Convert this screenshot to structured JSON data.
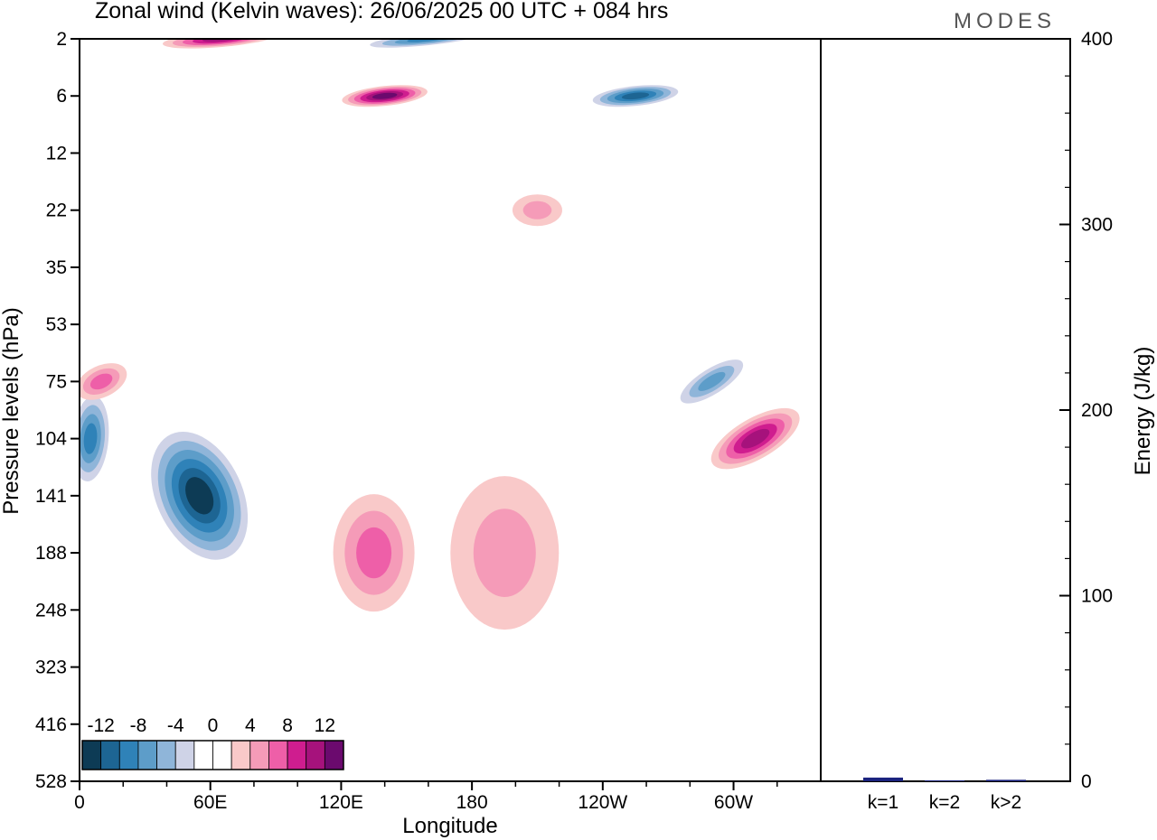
{
  "header": {
    "title": "Zonal wind (Kelvin waves):  26/06/2025  00 UTC  + 084 hrs",
    "logo": "MODES"
  },
  "chart_data": [
    {
      "type": "heatmap",
      "title": "Zonal wind (Kelvin waves):  26/06/2025  00 UTC  + 084 hrs",
      "xlabel": "Longitude",
      "ylabel": "Pressure levels (hPa)",
      "x_ticks": [
        "0",
        "60E",
        "120E",
        "180",
        "120W",
        "60W"
      ],
      "x_range": [
        0,
        340
      ],
      "y_ticks": [
        "2",
        "6",
        "12",
        "22",
        "35",
        "53",
        "75",
        "104",
        "141",
        "188",
        "248",
        "323",
        "416",
        "528"
      ],
      "colorbar": {
        "labels": [
          "-12",
          "-8",
          "-4",
          "0",
          "4",
          "8",
          "12"
        ],
        "levels": [
          -14,
          -12,
          -10,
          -8,
          -6,
          -4,
          -2,
          0,
          2,
          4,
          6,
          8,
          10,
          12,
          14
        ],
        "colors": [
          "#0d3b55",
          "#1d6593",
          "#2f82b8",
          "#5d9dc9",
          "#8fb5d9",
          "#cfd3e7",
          "#ffffff",
          "#ffffff",
          "#f9c9c9",
          "#f59bb8",
          "#ee5fa8",
          "#cf1d8f",
          "#a6127c",
          "#6b0a6e"
        ]
      },
      "features": [
        {
          "sign": "negative",
          "lon": 55,
          "level": "141",
          "peak": -12
        },
        {
          "sign": "negative",
          "lon": 5,
          "level": "104",
          "peak": -8
        },
        {
          "sign": "negative",
          "lon": 255,
          "level": "6",
          "peak": -10
        },
        {
          "sign": "negative",
          "lon": 160,
          "level": "2",
          "peak": -8
        },
        {
          "sign": "negative",
          "lon": 290,
          "level": "75",
          "peak": -6
        },
        {
          "sign": "positive",
          "lon": 140,
          "level": "6",
          "peak": 12
        },
        {
          "sign": "positive",
          "lon": 65,
          "level": "2",
          "peak": 10
        },
        {
          "sign": "positive",
          "lon": 135,
          "level": "188",
          "peak": 6
        },
        {
          "sign": "positive",
          "lon": 195,
          "level": "188",
          "peak": 4
        },
        {
          "sign": "positive",
          "lon": 310,
          "level": "104",
          "peak": 10
        },
        {
          "sign": "positive",
          "lon": 210,
          "level": "22",
          "peak": 4
        },
        {
          "sign": "positive",
          "lon": 10,
          "level": "75",
          "peak": 6
        }
      ]
    },
    {
      "type": "bar",
      "categories": [
        "k=1",
        "k=2",
        "k>2"
      ],
      "values": [
        2,
        0.5,
        0.8
      ],
      "ylabel": "Energy (J/kg)",
      "y_ticks": [
        "0",
        "100",
        "200",
        "300",
        "400"
      ],
      "ylim": [
        0,
        400
      ],
      "bar_color": "#1a237e"
    }
  ]
}
